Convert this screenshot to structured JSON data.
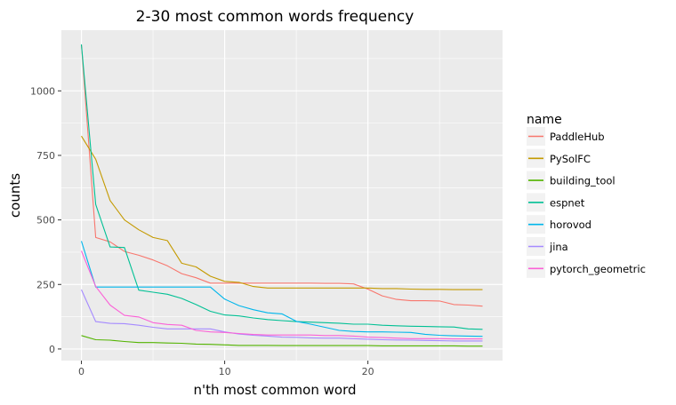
{
  "chart_data": {
    "type": "line",
    "title": "2-30 most common words frequency",
    "xlabel": "n'th most common word",
    "ylabel": "counts",
    "xlim": [
      -1.4,
      29.4
    ],
    "ylim": [
      -45,
      1235
    ],
    "x_ticks": [
      0,
      10,
      20
    ],
    "y_ticks": [
      0,
      250,
      500,
      750,
      1000
    ],
    "grid": true,
    "legend_title": "name",
    "legend_position": "right",
    "x": [
      0,
      1,
      2,
      3,
      4,
      5,
      6,
      7,
      8,
      9,
      10,
      11,
      12,
      13,
      14,
      15,
      16,
      17,
      18,
      19,
      20,
      21,
      22,
      23,
      24,
      25,
      26,
      27,
      28
    ],
    "series": [
      {
        "name": "PaddleHub",
        "color": "#F8766D",
        "values": [
          1180,
          432,
          415,
          378,
          363,
          345,
          322,
          292,
          276,
          255,
          255,
          255,
          255,
          255,
          255,
          255,
          255,
          254,
          254,
          252,
          232,
          206,
          192,
          187,
          187,
          186,
          172,
          170,
          166
        ]
      },
      {
        "name": "PySolFC",
        "color": "#C49A00",
        "values": [
          825,
          735,
          575,
          500,
          462,
          432,
          420,
          332,
          318,
          282,
          262,
          258,
          242,
          236,
          236,
          236,
          236,
          236,
          236,
          236,
          236,
          234,
          234,
          232,
          231,
          231,
          230,
          230,
          230
        ]
      },
      {
        "name": "building_tool",
        "color": "#53B400",
        "values": [
          52,
          36,
          34,
          29,
          25,
          25,
          23,
          22,
          19,
          18,
          16,
          14,
          14,
          14,
          13,
          13,
          13,
          13,
          13,
          13,
          13,
          12,
          12,
          12,
          12,
          12,
          12,
          11,
          11
        ]
      },
      {
        "name": "espnet",
        "color": "#00C094",
        "values": [
          1180,
          560,
          395,
          393,
          228,
          220,
          212,
          196,
          172,
          146,
          132,
          128,
          120,
          114,
          110,
          106,
          104,
          102,
          100,
          96,
          96,
          92,
          90,
          88,
          87,
          86,
          85,
          78,
          76
        ]
      },
      {
        "name": "horovod",
        "color": "#00B6EB",
        "values": [
          418,
          240,
          240,
          240,
          240,
          240,
          240,
          240,
          240,
          240,
          193,
          168,
          152,
          140,
          136,
          107,
          96,
          84,
          72,
          68,
          66,
          66,
          65,
          64,
          57,
          53,
          51,
          50,
          49
        ]
      },
      {
        "name": "jina",
        "color": "#A58AFF",
        "values": [
          230,
          106,
          99,
          98,
          92,
          84,
          78,
          78,
          78,
          78,
          66,
          58,
          53,
          50,
          46,
          45,
          43,
          42,
          42,
          40,
          38,
          36,
          35,
          34,
          33,
          32,
          31,
          31,
          31
        ]
      },
      {
        "name": "pytorch_geometric",
        "color": "#FB61D7",
        "values": [
          380,
          242,
          170,
          130,
          124,
          102,
          95,
          92,
          72,
          66,
          64,
          60,
          56,
          54,
          54,
          54,
          54,
          52,
          52,
          50,
          46,
          44,
          42,
          40,
          40,
          40,
          39,
          39,
          39
        ]
      }
    ]
  }
}
